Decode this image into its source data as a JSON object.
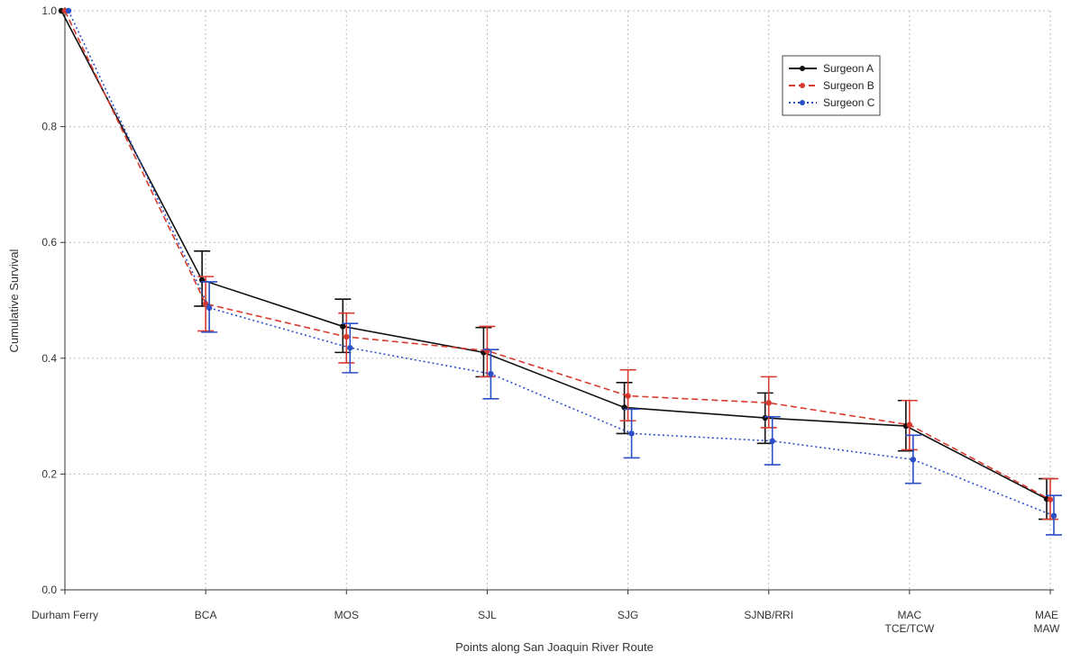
{
  "chart_data": {
    "type": "line",
    "xlabel": "Points along San Joaquin River Route",
    "ylabel": "Cumulative Survival",
    "ylim": [
      0.0,
      1.0
    ],
    "yticks": [
      "0.0",
      "0.2",
      "0.4",
      "0.6",
      "0.8",
      "1.0"
    ],
    "grid": true,
    "legend_position": "top-right",
    "categories": [
      [
        "Durham Ferry"
      ],
      [
        "BCA"
      ],
      [
        "MOS"
      ],
      [
        "SJL"
      ],
      [
        "SJG"
      ],
      [
        "SJNB/RRI"
      ],
      [
        "MAC",
        "TCE/TCW"
      ],
      [
        "MAE",
        "MAW"
      ]
    ],
    "series": [
      {
        "name": "Surgeon A",
        "color": "#111111",
        "dash": "solid",
        "values": [
          1.0,
          0.535,
          0.455,
          0.41,
          0.315,
          0.297,
          0.283,
          0.157
        ],
        "lower": [
          1.0,
          0.49,
          0.41,
          0.368,
          0.27,
          0.253,
          0.24,
          0.122
        ],
        "upper": [
          1.0,
          0.585,
          0.502,
          0.453,
          0.358,
          0.34,
          0.327,
          0.192
        ]
      },
      {
        "name": "Surgeon B",
        "color": "#d93a2f",
        "dash": "dashed",
        "values": [
          1.0,
          0.494,
          0.437,
          0.413,
          0.335,
          0.323,
          0.285,
          0.156
        ],
        "lower": [
          1.0,
          0.447,
          0.392,
          0.368,
          0.292,
          0.28,
          0.242,
          0.122
        ],
        "upper": [
          1.0,
          0.541,
          0.478,
          0.455,
          0.38,
          0.368,
          0.327,
          0.192
        ]
      },
      {
        "name": "Surgeon C",
        "color": "#2b4fc7",
        "dash": "dotted",
        "values": [
          1.0,
          0.487,
          0.418,
          0.373,
          0.27,
          0.257,
          0.225,
          0.128
        ],
        "lower": [
          1.0,
          0.445,
          0.375,
          0.33,
          0.228,
          0.216,
          0.184,
          0.095
        ],
        "upper": [
          1.0,
          0.532,
          0.46,
          0.415,
          0.312,
          0.299,
          0.267,
          0.163
        ]
      }
    ]
  }
}
